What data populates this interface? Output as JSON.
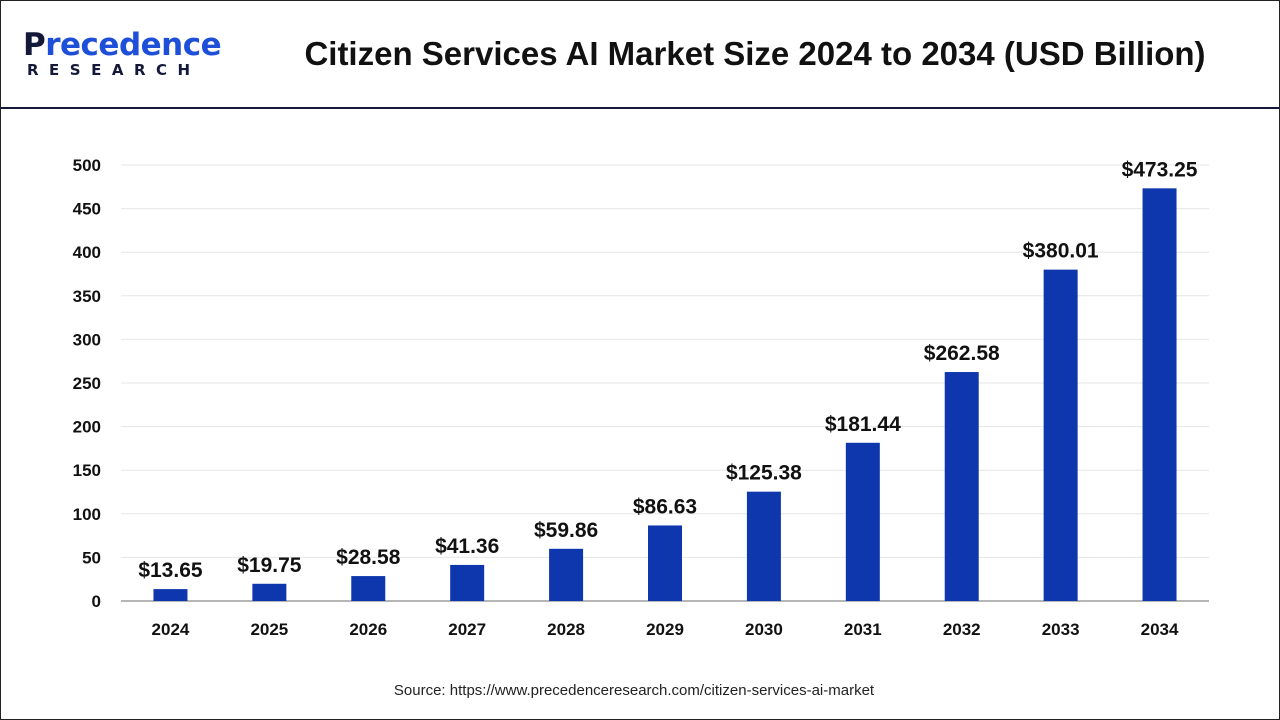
{
  "logo": {
    "text_top": "Precedence",
    "text_bottom": "RESEARCH"
  },
  "source": "Source: https://www.precedenceresearch.com/citizen-services-ai-market",
  "chart_data": {
    "type": "bar",
    "title": "Citizen Services AI Market Size 2024 to 2034 (USD Billion)",
    "xlabel": "",
    "ylabel": "",
    "categories": [
      "2024",
      "2025",
      "2026",
      "2027",
      "2028",
      "2029",
      "2030",
      "2031",
      "2032",
      "2033",
      "2034"
    ],
    "values": [
      13.65,
      19.75,
      28.58,
      41.36,
      59.86,
      86.63,
      125.38,
      181.44,
      262.58,
      380.01,
      473.25
    ],
    "data_labels": [
      "$13.65",
      "$19.75",
      "$28.58",
      "$41.36",
      "$59.86",
      "$86.63",
      "$125.38",
      "$181.44",
      "$262.58",
      "$380.01",
      "$473.25"
    ],
    "ylim": [
      0,
      500
    ],
    "yticks": [
      0,
      50,
      100,
      150,
      200,
      250,
      300,
      350,
      400,
      450,
      500
    ],
    "grid": true,
    "legend": "none",
    "bar_color": "#0f37ad"
  }
}
